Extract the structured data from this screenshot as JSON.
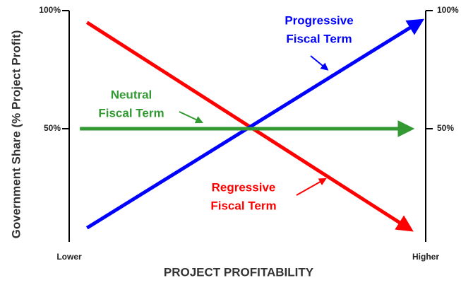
{
  "chart_data": {
    "type": "line",
    "y_label": "Government  Share (% Project Profit)",
    "x_label": "PROJECT  PROFITABILITY",
    "xlim": [
      0,
      100
    ],
    "xticks": [
      {
        "value": 0,
        "label": "Lower"
      },
      {
        "value": 100,
        "label": "Higher"
      }
    ],
    "ylim": [
      0,
      100
    ],
    "yticks": [
      {
        "value": 50,
        "label": "50%"
      },
      {
        "value": 100,
        "label": "100%"
      }
    ],
    "y2lim": [
      0,
      100
    ],
    "y2ticks": [
      {
        "value": 50,
        "label": "50%"
      },
      {
        "value": 100,
        "label": "100%"
      }
    ],
    "series": [
      {
        "color": "#ff0000",
        "x": [
          5,
          95
        ],
        "values": [
          95,
          8
        ]
      },
      {
        "color": "#0000ff",
        "x": [
          5,
          98
        ],
        "values": [
          8,
          95
        ]
      },
      {
        "color": "#339933",
        "x": [
          3,
          95
        ],
        "values": [
          50,
          50
        ]
      }
    ],
    "annotations": [
      {
        "text": [
          "Progressive",
          "Fiscal Term"
        ],
        "color": "#0000ff"
      },
      {
        "text": [
          "Neutral",
          "Fiscal Term"
        ],
        "color": "#339933"
      },
      {
        "text": [
          "Regressive",
          "Fiscal Term"
        ],
        "color": "#ff0000"
      }
    ]
  }
}
